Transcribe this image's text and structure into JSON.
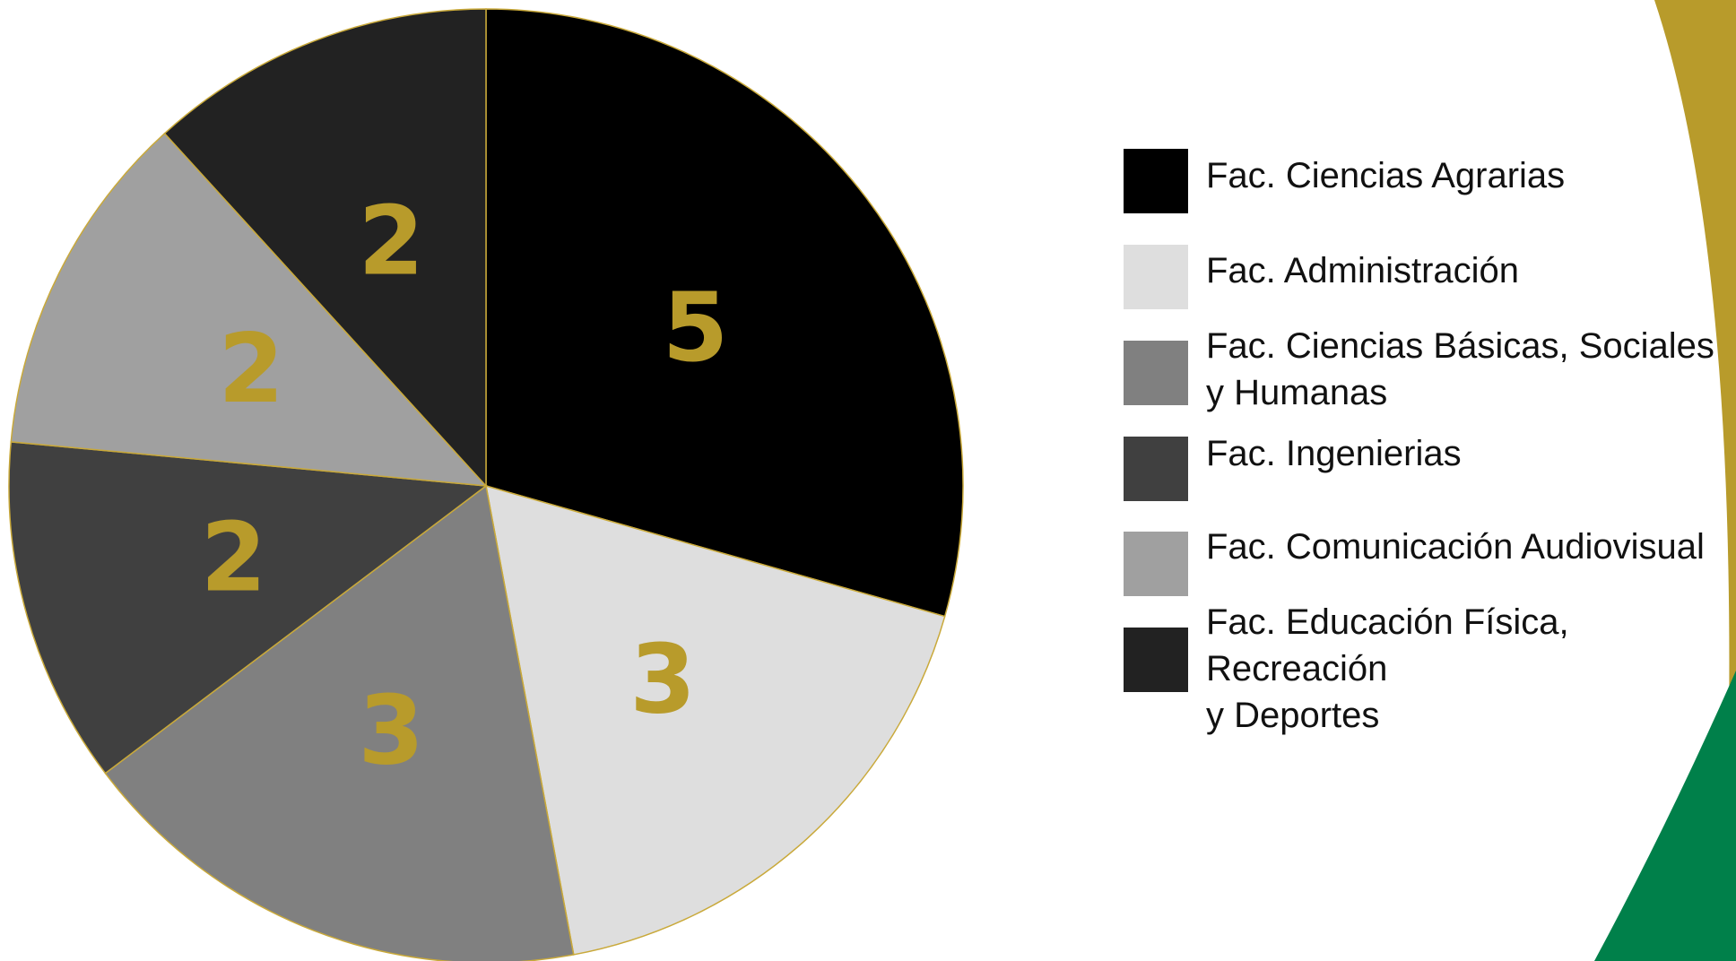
{
  "colors": {
    "gold": "#B89B2B",
    "green": "#00804A",
    "slice_border": "#C9A93A"
  },
  "chart_data": {
    "type": "pie",
    "title": "",
    "categories": [
      "Fac. Ciencias Agrarias",
      "Fac. Administración",
      "Fac. Ciencias Básicas, Sociales y Humanas",
      "Fac. Ingenierias",
      "Fac. Comunicación Audiovisual",
      "Fac. Educación Física, Recreación y Deportes"
    ],
    "legend_labels": [
      "Fac. Ciencias Agrarias",
      "Fac. Administración",
      "Fac. Ciencias Básicas, Sociales\ny Humanas",
      "Fac. Ingenierias",
      "Fac. Comunicación Audiovisual",
      "Fac. Educación Física, Recreación\ny Deportes"
    ],
    "values": [
      5,
      3,
      3,
      2,
      2,
      2
    ],
    "data_labels": [
      "5",
      "3",
      "3",
      "2",
      "2",
      "2"
    ],
    "slice_colors": [
      "#000000",
      "#DEDEDE",
      "#808080",
      "#404040",
      "#A0A0A0",
      "#222222"
    ],
    "label_color": "#B89B2B",
    "legend_position": "right"
  }
}
